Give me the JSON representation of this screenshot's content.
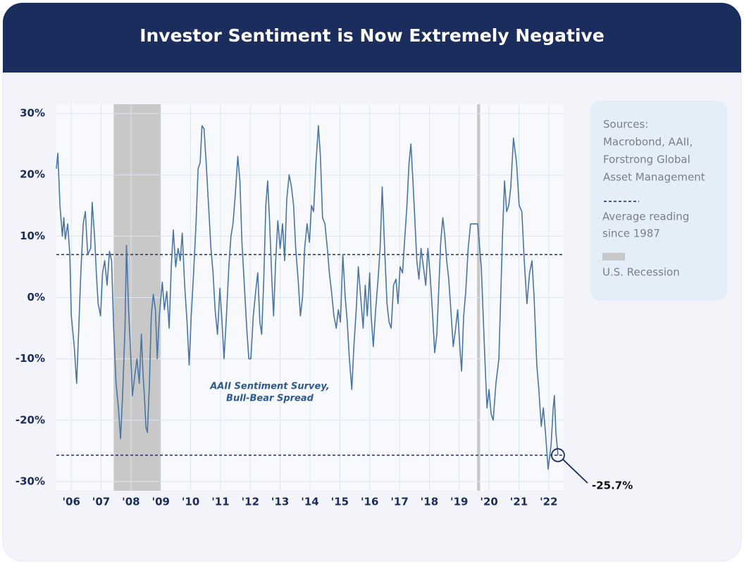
{
  "chart_data": {
    "type": "line",
    "title": "Investor Sentiment is Now Extremely Negative",
    "annotations": [
      {
        "lines": [
          "AAII Sentiment Survey,",
          "Bull-Bear Spread"
        ]
      }
    ],
    "sources": [
      "Sources:",
      "Macrobond, AAII,",
      "Forstrong Global",
      "Asset Management"
    ],
    "legend": [
      {
        "lines": [
          "Average reading",
          "since 1987"
        ],
        "style": "dashed",
        "color": "#1b2d5c"
      },
      {
        "lines": [
          "U.S. Recession"
        ],
        "style": "box",
        "color": "#c8c8c8"
      }
    ],
    "reference_lines": [
      {
        "value": 7.0
      },
      {
        "value": -25.7,
        "label": "-25.7%"
      }
    ],
    "recessions": [
      [
        2007.92,
        2009.5
      ],
      [
        2020.1,
        2020.2
      ]
    ],
    "recession_color": "#c8c8c8",
    "xlim": [
      2006,
      2023
    ],
    "xticks": [
      {
        "value": 2006.5,
        "label": "'06"
      },
      {
        "value": 2007.5,
        "label": "'07"
      },
      {
        "value": 2008.5,
        "label": "'08"
      },
      {
        "value": 2009.5,
        "label": "'09"
      },
      {
        "value": 2010.5,
        "label": "'10"
      },
      {
        "value": 2011.5,
        "label": "'11"
      },
      {
        "value": 2012.5,
        "label": "'12"
      },
      {
        "value": 2013.5,
        "label": "'13"
      },
      {
        "value": 2014.5,
        "label": "'14"
      },
      {
        "value": 2015.5,
        "label": "'15"
      },
      {
        "value": 2016.5,
        "label": "'16"
      },
      {
        "value": 2017.5,
        "label": "'17"
      },
      {
        "value": 2018.5,
        "label": "'18"
      },
      {
        "value": 2019.5,
        "label": "'19"
      },
      {
        "value": 2020.5,
        "label": "'20"
      },
      {
        "value": 2021.5,
        "label": "'21"
      },
      {
        "value": 2022.5,
        "label": "'22"
      }
    ],
    "ylim": [
      -31.5,
      31.5
    ],
    "yticks": [
      {
        "value": -30,
        "label": "-30%"
      },
      {
        "value": -20,
        "label": "-20%"
      },
      {
        "value": -10,
        "label": "-10%"
      },
      {
        "value": 0,
        "label": "0%"
      },
      {
        "value": 10,
        "label": "10%"
      },
      {
        "value": 20,
        "label": "20%"
      },
      {
        "value": 30,
        "label": "30%"
      }
    ],
    "grid": true,
    "series": [
      {
        "color": "#4a76a6",
        "x": [
          2006.0,
          2006.05,
          2006.12,
          2006.2,
          2006.25,
          2006.3,
          2006.38,
          2006.45,
          2006.5,
          2006.6,
          2006.68,
          2006.75,
          2006.82,
          2006.9,
          2006.97,
          2007.05,
          2007.15,
          2007.2,
          2007.28,
          2007.35,
          2007.4,
          2007.48,
          2007.55,
          2007.62,
          2007.7,
          2007.78,
          2007.85,
          2007.92,
          2008.0,
          2008.08,
          2008.15,
          2008.22,
          2008.3,
          2008.35,
          2008.42,
          2008.48,
          2008.55,
          2008.62,
          2008.7,
          2008.78,
          2008.85,
          2008.9,
          2008.95,
          2009.0,
          2009.05,
          2009.12,
          2009.18,
          2009.25,
          2009.32,
          2009.38,
          2009.45,
          2009.55,
          2009.62,
          2009.7,
          2009.78,
          2009.85,
          2009.92,
          2010.0,
          2010.08,
          2010.15,
          2010.22,
          2010.3,
          2010.38,
          2010.45,
          2010.52,
          2010.6,
          2010.68,
          2010.75,
          2010.82,
          2010.88,
          2010.95,
          2011.02,
          2011.1,
          2011.18,
          2011.25,
          2011.32,
          2011.4,
          2011.48,
          2011.55,
          2011.62,
          2011.7,
          2011.78,
          2011.85,
          2011.92,
          2012.0,
          2012.08,
          2012.15,
          2012.22,
          2012.3,
          2012.38,
          2012.45,
          2012.52,
          2012.6,
          2012.68,
          2012.75,
          2012.82,
          2012.88,
          2012.95,
          2013.02,
          2013.08,
          2013.15,
          2013.22,
          2013.28,
          2013.35,
          2013.42,
          2013.5,
          2013.58,
          2013.65,
          2013.72,
          2013.8,
          2013.88,
          2013.95,
          2014.02,
          2014.1,
          2014.18,
          2014.25,
          2014.32,
          2014.4,
          2014.48,
          2014.55,
          2014.62,
          2014.7,
          2014.78,
          2014.85,
          2014.92,
          2015.0,
          2015.08,
          2015.15,
          2015.22,
          2015.3,
          2015.38,
          2015.45,
          2015.52,
          2015.6,
          2015.68,
          2015.75,
          2015.82,
          2015.9,
          2015.97,
          2016.05,
          2016.12,
          2016.2,
          2016.28,
          2016.35,
          2016.42,
          2016.5,
          2016.55,
          2016.62,
          2016.7,
          2016.78,
          2016.85,
          2016.92,
          2017.0,
          2017.08,
          2017.15,
          2017.22,
          2017.3,
          2017.38,
          2017.45,
          2017.52,
          2017.6,
          2017.68,
          2017.75,
          2017.82,
          2017.88,
          2017.95,
          2018.02,
          2018.08,
          2018.15,
          2018.22,
          2018.3,
          2018.38,
          2018.45,
          2018.52,
          2018.6,
          2018.68,
          2018.75,
          2018.82,
          2018.88,
          2018.95,
          2019.02,
          2019.08,
          2019.15,
          2019.22,
          2019.3,
          2019.38,
          2019.45,
          2019.52,
          2019.58,
          2019.65,
          2019.72,
          2019.8,
          2019.88,
          2019.98,
          2020.12,
          2020.24,
          2020.36,
          2020.43,
          2020.5,
          2020.57,
          2020.64,
          2020.73,
          2020.83,
          2020.95,
          2021.02,
          2021.09,
          2021.16,
          2021.23,
          2021.32,
          2021.42,
          2021.51,
          2021.6,
          2021.68,
          2021.77,
          2021.86,
          2021.94,
          2022.01,
          2022.1,
          2022.17,
          2022.25,
          2022.32,
          2022.39,
          2022.48,
          2022.58,
          2022.65,
          2022.69,
          2022.74,
          2022.81
        ],
        "values": [
          21,
          23.5,
          15,
          10,
          13,
          9.5,
          12,
          7,
          -3,
          -8,
          -14,
          -5,
          4,
          12,
          14,
          7,
          8,
          15.5,
          10,
          3,
          -1,
          -3,
          4,
          6,
          2,
          7.5,
          6,
          -5,
          -14,
          -18,
          -23,
          -16,
          -5,
          8.5,
          -2,
          -8,
          -16,
          -13,
          -10,
          -14,
          -6,
          -12,
          -16,
          -21,
          -22,
          -14,
          -3,
          0.5,
          -2,
          -10,
          -3,
          2.5,
          -2,
          1,
          -5,
          5,
          11,
          5,
          8,
          6,
          10.5,
          2,
          -4,
          -11,
          -3,
          4,
          12,
          21,
          22,
          28,
          27.5,
          22,
          15,
          8,
          4,
          -2,
          -6,
          1.5,
          -4,
          -10,
          -3,
          5,
          10,
          12,
          17,
          23,
          19,
          9,
          2,
          -5,
          -10,
          -10,
          -3,
          1,
          4,
          -4,
          -6,
          3,
          15,
          19,
          12,
          3,
          -3,
          6,
          12.5,
          8,
          12,
          6,
          16,
          20,
          18,
          15,
          8,
          3,
          -3,
          0,
          8,
          12,
          9,
          15,
          14,
          22,
          28,
          23,
          13,
          12,
          8,
          4,
          1,
          -3,
          -5,
          -2,
          -4,
          7,
          0,
          -4,
          -10,
          -15,
          -8,
          -2,
          5,
          0,
          -5,
          2,
          -3,
          4,
          -3,
          -8,
          -2,
          3,
          8,
          18,
          8,
          -1,
          -4,
          -5,
          2,
          3,
          -1,
          5,
          4,
          10,
          15,
          22,
          25,
          19,
          12,
          6,
          3,
          8,
          5,
          2,
          8,
          4,
          -2,
          -9,
          -6,
          2,
          9,
          13,
          10,
          6,
          3,
          -2,
          -8,
          -5,
          -2,
          -8,
          -12,
          -3,
          1,
          8,
          12,
          12,
          12,
          5,
          -10,
          -18,
          -15,
          -19,
          -20,
          -14,
          -10,
          10,
          19,
          14,
          15,
          18,
          26,
          22,
          15,
          14,
          6,
          -1,
          4,
          6,
          0,
          -11,
          -15,
          -21,
          -18,
          -22,
          -28,
          -24,
          -18,
          -16,
          -22,
          -25.7
        ]
      }
    ]
  }
}
